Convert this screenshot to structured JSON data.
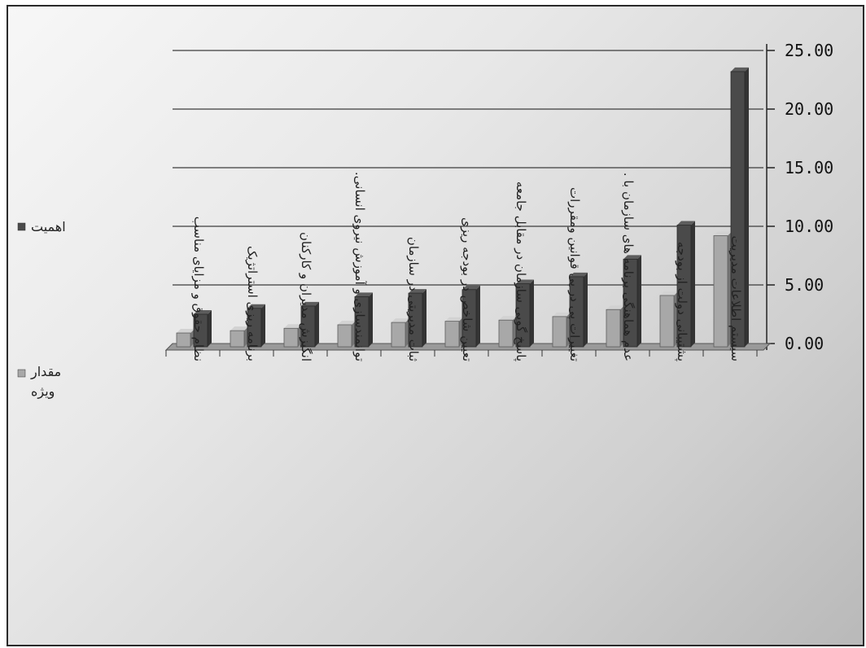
{
  "chart_data": {
    "type": "bar",
    "categories": [
      "نظام حقوق و مزایای مناسب",
      "برنامه ریزی استراتژیک",
      "انگیزش مدیران و کارکنان",
      "توانمندسازی و آموزش نیروی انسانی.",
      "ثبات مدیریتی در سازمان",
      "تعیین شاخص در بودجه ریزی",
      "پاسخ گویی سازمان در مقابل جامعه",
      "تغییرات پی در پی قوانین ومقررات",
      "عدم هماهنگی برنامه های سازمان با .",
      "پشتیبانی دولت از بودجه",
      "سیستم اطلاعات مدیریت"
    ],
    "series": [
      {
        "name": "مقدار ویژه",
        "color": "#a8a8a8",
        "values": [
          0.9,
          1.1,
          1.3,
          1.6,
          1.8,
          1.9,
          2.0,
          2.3,
          2.9,
          4.1,
          9.2
        ]
      },
      {
        "name": "اهمیت",
        "color": "#4a4a4a",
        "values": [
          2.5,
          3.0,
          3.2,
          4.0,
          4.3,
          4.6,
          5.1,
          5.7,
          7.2,
          10.1,
          23.2
        ]
      }
    ],
    "y_ticks": [
      "0.00",
      "5.00",
      "10.00",
      "15.00",
      "20.00",
      "25.00"
    ],
    "ylim": [
      0,
      25
    ],
    "y_axis_side": "right",
    "grid": true,
    "legend_position": "left",
    "legend": [
      {
        "label": "اهمیت",
        "color": "#4a4a4a"
      },
      {
        "label": "مقدار",
        "label2": "ویژه",
        "color": "#a8a8a8"
      }
    ]
  }
}
